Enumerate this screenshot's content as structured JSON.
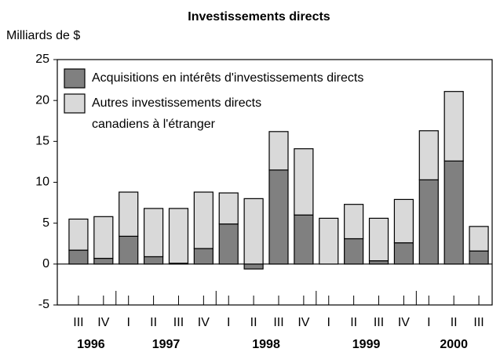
{
  "chart_data": {
    "type": "stacked_bar",
    "title": "Investissements directs",
    "y_label": "Milliards de $",
    "categories": [
      "III",
      "IV",
      "I",
      "II",
      "III",
      "IV",
      "I",
      "II",
      "III",
      "IV",
      "I",
      "II",
      "III",
      "IV",
      "I",
      "II",
      "III"
    ],
    "x_groups": [
      {
        "label": "1996",
        "size": 2
      },
      {
        "label": "1997",
        "size": 4
      },
      {
        "label": "1998",
        "size": 4
      },
      {
        "label": "1999",
        "size": 4
      },
      {
        "label": "2000",
        "size": 3
      }
    ],
    "series": [
      {
        "name": "Acquisitions en intérêts d'investissements directs",
        "color": "#808080",
        "values": [
          1.7,
          0.7,
          3.4,
          0.9,
          0.1,
          1.9,
          4.9,
          -0.6,
          11.5,
          6.0,
          0,
          3.1,
          0.4,
          2.6,
          10.3,
          12.6,
          1.6
        ]
      },
      {
        "name": [
          "Autres investissements directs",
          "canadiens à l'étranger"
        ],
        "color": "#d9d9d9",
        "values": [
          3.8,
          5.1,
          5.4,
          5.9,
          6.7,
          6.9,
          3.8,
          8.0,
          4.7,
          8.1,
          5.6,
          4.2,
          5.2,
          5.3,
          6.0,
          8.5,
          3.0
        ]
      }
    ],
    "ylim": [
      -5,
      25
    ],
    "yticks": [
      -5,
      0,
      5,
      10,
      15,
      20,
      25
    ],
    "legend": "upper left"
  }
}
